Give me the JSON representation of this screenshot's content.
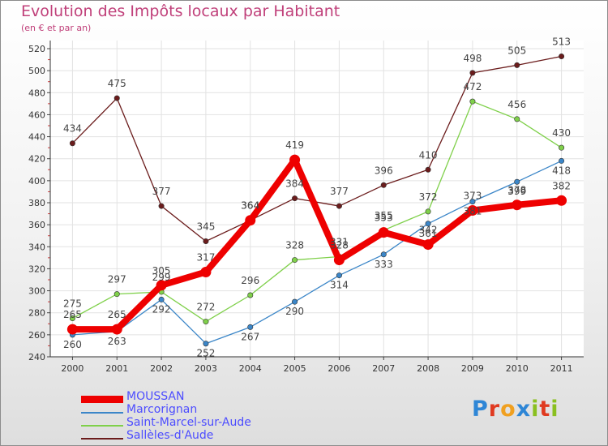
{
  "header": {
    "title": "Evolution des Impôts locaux par Habitant",
    "subtitle": "(en € et par an)"
  },
  "logo": {
    "text": "Proxiti",
    "letter_colors": [
      "#2e86d6",
      "#e03a20",
      "#f0a020",
      "#2e86d6",
      "#8ac020",
      "#e03a20",
      "#8ac020"
    ]
  },
  "chart_data": {
    "type": "line",
    "title": "Evolution des Impôts locaux par Habitant",
    "subtitle": "(en € et par an)",
    "xlabel": "",
    "ylabel": "",
    "x": [
      "2000",
      "2001",
      "2002",
      "2003",
      "2004",
      "2005",
      "2006",
      "2007",
      "2008",
      "2009",
      "2010",
      "2011"
    ],
    "ylim": [
      240,
      520
    ],
    "yticks": [
      240,
      260,
      280,
      300,
      320,
      340,
      360,
      380,
      400,
      420,
      440,
      460,
      480,
      500,
      520
    ],
    "grid": true,
    "legend_position": "bottom-left",
    "series": [
      {
        "name": "MOUSSAN",
        "color": "#ee0000",
        "values": [
          265,
          265,
          305,
          317,
          364,
          419,
          328,
          353,
          342,
          373,
          378,
          382
        ]
      },
      {
        "name": "Marcorignan",
        "color": "#3b86c8",
        "values": [
          260,
          263,
          292,
          252,
          267,
          290,
          314,
          333,
          361,
          381,
          399,
          418
        ]
      },
      {
        "name": "Saint-Marcel-sur-Aude",
        "color": "#7fd04a",
        "values": [
          275,
          297,
          299,
          272,
          296,
          328,
          331,
          355,
          372,
          472,
          456,
          430
        ]
      },
      {
        "name": "Sallèles-d'Aude",
        "color": "#6b1c1c",
        "values": [
          434,
          475,
          377,
          345,
          364,
          384,
          377,
          396,
          410,
          498,
          505,
          513
        ]
      }
    ]
  }
}
